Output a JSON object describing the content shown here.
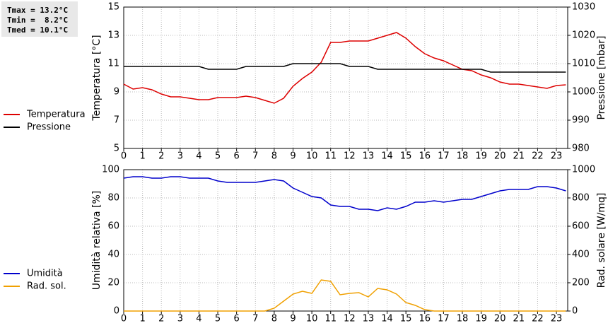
{
  "stats": [
    "Tmax = 13.2°C",
    "Tmin =  8.2°C",
    "Tmed = 10.1°C"
  ],
  "chart_data": [
    {
      "type": "line",
      "ylabel": "Temperatura [°C]",
      "y2label": "Pressione [mbar]",
      "x": [
        0,
        0.5,
        1,
        1.5,
        2,
        2.5,
        3,
        3.5,
        4,
        4.5,
        5,
        5.5,
        6,
        6.5,
        7,
        7.5,
        8,
        8.5,
        9,
        9.5,
        10,
        10.5,
        11,
        11.5,
        12,
        12.5,
        13,
        13.5,
        14,
        14.5,
        15,
        15.5,
        16,
        16.5,
        17,
        17.5,
        18,
        18.5,
        19,
        19.5,
        20,
        20.5,
        21,
        21.5,
        22,
        22.5,
        23,
        23.5
      ],
      "xlim": [
        0,
        23.6
      ],
      "xticks": [
        0,
        1,
        2,
        3,
        4,
        5,
        6,
        7,
        8,
        9,
        10,
        11,
        12,
        13,
        14,
        15,
        16,
        17,
        18,
        19,
        20,
        21,
        22,
        23
      ],
      "ylim": [
        5,
        15
      ],
      "yticks": [
        5,
        7,
        9,
        11,
        13,
        15
      ],
      "y2lim": [
        980,
        1030
      ],
      "y2ticks": [
        980,
        990,
        1000,
        1010,
        1020,
        1030
      ],
      "grid": true,
      "series": [
        {
          "name": "Temperatura",
          "color": "#dd0000",
          "values": [
            9.55,
            9.2,
            9.3,
            9.15,
            8.85,
            8.65,
            8.65,
            8.55,
            8.45,
            8.45,
            8.6,
            8.6,
            8.6,
            8.7,
            8.6,
            8.4,
            8.2,
            8.55,
            9.4,
            9.95,
            10.4,
            11.1,
            12.5,
            12.5,
            12.6,
            12.6,
            12.6,
            12.8,
            13.0,
            13.2,
            12.8,
            12.2,
            11.7,
            11.4,
            11.2,
            10.9,
            10.6,
            10.5,
            10.2,
            10.0,
            9.7,
            9.55,
            9.55,
            9.45,
            9.35,
            9.25,
            9.45,
            9.5
          ]
        },
        {
          "name": "Pressione",
          "color": "#000000",
          "axis": "y2",
          "values": [
            1009,
            1009,
            1009,
            1009,
            1009,
            1009,
            1009,
            1009,
            1009,
            1008,
            1008,
            1008,
            1008,
            1009,
            1009,
            1009,
            1009,
            1009,
            1010,
            1010,
            1010,
            1010,
            1010,
            1010,
            1009,
            1009,
            1009,
            1008,
            1008,
            1008,
            1008,
            1008,
            1008,
            1008,
            1008,
            1008,
            1008,
            1008,
            1008,
            1007,
            1007,
            1007,
            1007,
            1007,
            1007,
            1007,
            1007,
            1007
          ]
        }
      ]
    },
    {
      "type": "line",
      "ylabel": "Umidità relativa [%]",
      "y2label": "Rad. solare [W/mq]",
      "x": [
        0,
        0.5,
        1,
        1.5,
        2,
        2.5,
        3,
        3.5,
        4,
        4.5,
        5,
        5.5,
        6,
        6.5,
        7,
        7.5,
        8,
        8.5,
        9,
        9.5,
        10,
        10.5,
        11,
        11.5,
        12,
        12.5,
        13,
        13.5,
        14,
        14.5,
        15,
        15.5,
        16,
        16.5,
        17,
        17.5,
        18,
        18.5,
        19,
        19.5,
        20,
        20.5,
        21,
        21.5,
        22,
        22.5,
        23,
        23.5
      ],
      "xlim": [
        0,
        23.6
      ],
      "xticks": [
        0,
        1,
        2,
        3,
        4,
        5,
        6,
        7,
        8,
        9,
        10,
        11,
        12,
        13,
        14,
        15,
        16,
        17,
        18,
        19,
        20,
        21,
        22,
        23
      ],
      "ylim": [
        0,
        100
      ],
      "yticks": [
        0,
        20,
        40,
        60,
        80,
        100
      ],
      "y2lim": [
        0,
        1000
      ],
      "y2ticks": [
        0,
        200,
        400,
        600,
        800,
        1000
      ],
      "grid": true,
      "series": [
        {
          "name": "Umidità",
          "color": "#0000cc",
          "values": [
            94,
            95,
            95,
            94,
            94,
            95,
            95,
            94,
            94,
            94,
            92,
            91,
            91,
            91,
            91,
            92,
            93,
            92,
            87,
            84,
            81,
            80,
            75,
            74,
            74,
            72,
            72,
            71,
            73,
            72,
            74,
            77,
            77,
            78,
            77,
            78,
            79,
            79,
            81,
            83,
            85,
            86,
            86,
            86,
            88,
            88,
            87,
            85
          ]
        },
        {
          "name": "Rad. sol.",
          "color": "#f0a000",
          "axis": "y2",
          "values": [
            0,
            0,
            0,
            0,
            0,
            0,
            0,
            0,
            0,
            0,
            0,
            0,
            0,
            0,
            0,
            0,
            20,
            70,
            120,
            140,
            125,
            220,
            210,
            115,
            125,
            130,
            100,
            160,
            150,
            120,
            60,
            40,
            10,
            0,
            0,
            0,
            0,
            0,
            0,
            0,
            0,
            0,
            0,
            0,
            0,
            0,
            0,
            0
          ]
        }
      ]
    }
  ]
}
